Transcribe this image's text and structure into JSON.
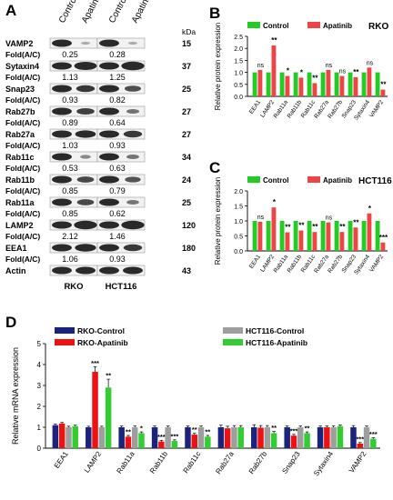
{
  "panels": {
    "a": "A",
    "b": "B",
    "c": "C",
    "d": "D"
  },
  "blot": {
    "columns": [
      "Control",
      "Apatinib",
      "Control",
      "Apatinib"
    ],
    "kda": "kDa",
    "fold_label": "Fold(A/C)",
    "cell_lines": [
      "RKO",
      "HCT116"
    ],
    "rows": [
      {
        "protein": "VAMP2",
        "kda": "15",
        "fold": [
          "0.25",
          "0.28"
        ]
      },
      {
        "protein": "Sytaxin4",
        "kda": "37",
        "fold": [
          "1.13",
          "1.25"
        ]
      },
      {
        "protein": "Snap23",
        "kda": "25",
        "fold": [
          "0.93",
          "0.82"
        ]
      },
      {
        "protein": "Rab27b",
        "kda": "27",
        "fold": [
          "0.89",
          "0.64"
        ]
      },
      {
        "protein": "Rab27a",
        "kda": "27",
        "fold": [
          "1.03",
          "0.93"
        ]
      },
      {
        "protein": "Rab11c",
        "kda": "34",
        "fold": [
          "0.53",
          "0.63"
        ]
      },
      {
        "protein": "Rab11b",
        "kda": "24",
        "fold": [
          "0.85",
          "0.79"
        ]
      },
      {
        "protein": "Rab11a",
        "kda": "25",
        "fold": [
          "0.85",
          "0.62"
        ]
      },
      {
        "protein": "LAMP2",
        "kda": "120",
        "fold": [
          "2.12",
          "1.46"
        ]
      },
      {
        "protein": "EEA1",
        "kda": "180",
        "fold": [
          "1.06",
          "0.93"
        ]
      },
      {
        "protein": "Actin",
        "kda": "43",
        "fold": null
      }
    ]
  },
  "chart_data": [
    {
      "type": "bar",
      "panel": "B",
      "title": "RKO",
      "ylabel": "Relative protein expression",
      "ylim": [
        0,
        2.5
      ],
      "yticks": [
        "0.0",
        "0.5",
        "1.0",
        "1.5",
        "2.0",
        "2.5"
      ],
      "categories": [
        "EEA1",
        "LAMP2",
        "Rab11a",
        "Rab11b",
        "Rab11c",
        "Rab27a",
        "Rab27b",
        "Snap23",
        "Sytaxin4",
        "VAMP2"
      ],
      "series": [
        {
          "name": "Control",
          "color": "#22cc22",
          "values": [
            1,
            1,
            1,
            1,
            1,
            1,
            1,
            1,
            1,
            1
          ]
        },
        {
          "name": "Apatinib",
          "color": "#ee4444",
          "values": [
            1.1,
            2.12,
            0.85,
            0.78,
            0.55,
            1.1,
            0.85,
            0.8,
            1.2,
            0.28
          ]
        }
      ],
      "sig": [
        "ns",
        "**",
        "*",
        "*",
        "**",
        "ns",
        "ns",
        "**",
        "ns",
        "**"
      ]
    },
    {
      "type": "bar",
      "panel": "C",
      "title": "HCT116",
      "ylabel": "Relative protein expression",
      "ylim": [
        0,
        2.0
      ],
      "yticks": [
        "0.0",
        "0.5",
        "1.0",
        "1.5",
        "2.0"
      ],
      "categories": [
        "EEA1",
        "LAMP2",
        "Rab11a",
        "Rab11b",
        "Rab11c",
        "Rab27a",
        "Rab27b",
        "Snap23",
        "Sytaxin4",
        "VAMP2"
      ],
      "series": [
        {
          "name": "Control",
          "color": "#22cc22",
          "values": [
            1,
            1,
            1,
            1,
            1,
            1,
            1,
            1,
            1,
            1
          ]
        },
        {
          "name": "Apatinib",
          "color": "#ee4444",
          "values": [
            0.97,
            1.45,
            0.62,
            0.68,
            0.63,
            0.95,
            0.63,
            0.78,
            1.25,
            0.28
          ]
        }
      ],
      "sig": [
        "ns",
        "*",
        "**",
        "**",
        "**",
        "ns",
        "**",
        "**",
        "*",
        "***"
      ]
    },
    {
      "type": "bar",
      "panel": "D",
      "ylabel": "Relative mRNA expression",
      "ylim": [
        0,
        5
      ],
      "yticks": [
        "0",
        "1",
        "2",
        "3",
        "4",
        "5"
      ],
      "categories": [
        "EEA1",
        "LAMP2",
        "Rab11a",
        "Rab11b",
        "Rab11c",
        "Rab27a",
        "Rab27b",
        "Snap23",
        "Sytaxin4",
        "VAMP2"
      ],
      "series": [
        {
          "name": "RKO-Control",
          "color": "#1a237e",
          "values": [
            1.1,
            1.0,
            1.0,
            1.0,
            1.0,
            1.0,
            1.0,
            1.0,
            1.0,
            1.0
          ],
          "err": [
            0.05,
            0.05,
            0.06,
            0.06,
            0.06,
            0.1,
            0.12,
            0.06,
            0.06,
            0.08
          ]
        },
        {
          "name": "RKO-Apatinib",
          "color": "#ee1111",
          "values": [
            1.18,
            3.65,
            0.55,
            0.32,
            0.65,
            0.95,
            0.98,
            0.6,
            1.0,
            0.22
          ],
          "err": [
            0.05,
            0.25,
            0.06,
            0.05,
            0.06,
            0.1,
            0.1,
            0.06,
            0.06,
            0.05
          ]
        },
        {
          "name": "HCT116-Control",
          "color": "#9e9e9e",
          "values": [
            1.0,
            1.0,
            1.0,
            1.0,
            1.0,
            1.0,
            1.0,
            1.0,
            1.0,
            1.0
          ],
          "err": [
            0.05,
            0.05,
            0.06,
            0.06,
            0.06,
            0.08,
            0.08,
            0.06,
            0.06,
            0.06
          ]
        },
        {
          "name": "HCT116-Apatinib",
          "color": "#33cc33",
          "values": [
            1.05,
            2.9,
            0.72,
            0.35,
            0.55,
            1.0,
            0.72,
            0.72,
            1.05,
            0.45
          ],
          "err": [
            0.05,
            0.4,
            0.06,
            0.05,
            0.06,
            0.08,
            0.08,
            0.06,
            0.06,
            0.05
          ]
        }
      ],
      "sig": [
        [
          "",
          "",
          "",
          ""
        ],
        [
          "",
          "***",
          "",
          "**"
        ],
        [
          "",
          "**",
          "",
          "*"
        ],
        [
          "",
          "***",
          "",
          "***"
        ],
        [
          "",
          "**",
          "",
          "**"
        ],
        [
          "",
          "",
          "",
          ""
        ],
        [
          "",
          "",
          "",
          "**"
        ],
        [
          "",
          "***",
          "",
          "**"
        ],
        [
          "",
          "",
          "",
          ""
        ],
        [
          "",
          "***",
          "",
          "***"
        ]
      ]
    }
  ]
}
